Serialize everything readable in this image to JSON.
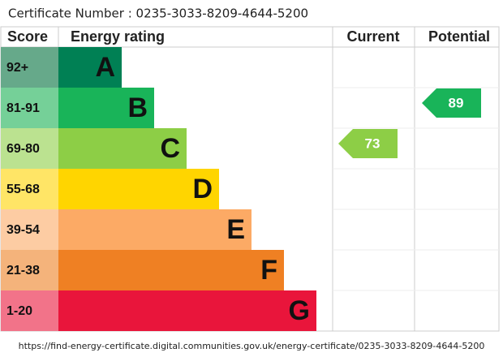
{
  "certificate": "Certificate Number : 0235-3033-8209-4644-5200",
  "headers": {
    "score": "Score",
    "rating": "Energy rating",
    "current": "Current",
    "potential": "Potential"
  },
  "bands": [
    {
      "score": "92+",
      "letter": "A",
      "color": "#008054",
      "light": "#66a98a"
    },
    {
      "score": "81-91",
      "letter": "B",
      "color": "#19b459",
      "light": "#75d098"
    },
    {
      "score": "69-80",
      "letter": "C",
      "color": "#8dce46",
      "light": "#bbe290"
    },
    {
      "score": "55-68",
      "letter": "D",
      "color": "#ffd500",
      "light": "#ffe566"
    },
    {
      "score": "39-54",
      "letter": "E",
      "color": "#fcaa65",
      "light": "#fdcca3"
    },
    {
      "score": "21-38",
      "letter": "F",
      "color": "#ef8023",
      "light": "#f4b37b"
    },
    {
      "score": "1-20",
      "letter": "G",
      "color": "#e9153b",
      "light": "#f27389"
    }
  ],
  "current": 73,
  "potential": 89,
  "url": "https://find-energy-certificate.digital.communities.gov.uk/energy-certificate/0235-3033-8209-4644-5200"
}
